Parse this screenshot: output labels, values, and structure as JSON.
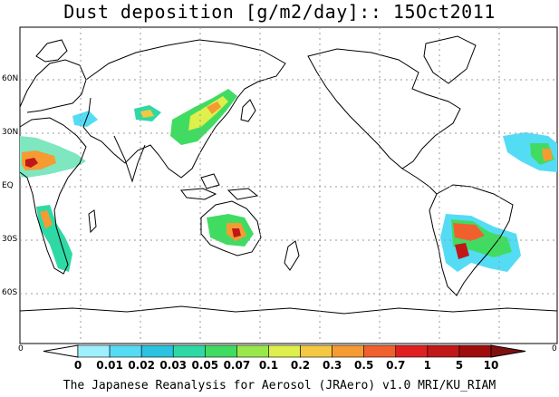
{
  "title": "Dust deposition [g/m2/day]:: 15Oct2011",
  "latitude_labels": [
    "60N",
    "30N",
    "EQ",
    "30S",
    "60S"
  ],
  "longitude_edge_labels": [
    "0",
    "0"
  ],
  "colorbar": {
    "labels": [
      "0",
      "0.01",
      "0.02",
      "0.03",
      "0.05",
      "0.07",
      "0.1",
      "0.2",
      "0.3",
      "0.5",
      "0.7",
      "1",
      "5",
      "10"
    ],
    "colors": [
      "#ffffff",
      "#9ff0ff",
      "#55dcf5",
      "#2ac3e0",
      "#2ed9a6",
      "#40dc62",
      "#98e84c",
      "#dfef4c",
      "#f5c842",
      "#f59b32",
      "#f0602e",
      "#e02020",
      "#c01818",
      "#a00c0c",
      "#801010"
    ]
  },
  "credit": "The Japanese Reanalysis for Aerosol (JRAero) v1.0 MRI/KU_RIAM",
  "colors": {
    "coastline": "#000000",
    "grid": "#9a9a9a",
    "frame": "#000000"
  }
}
